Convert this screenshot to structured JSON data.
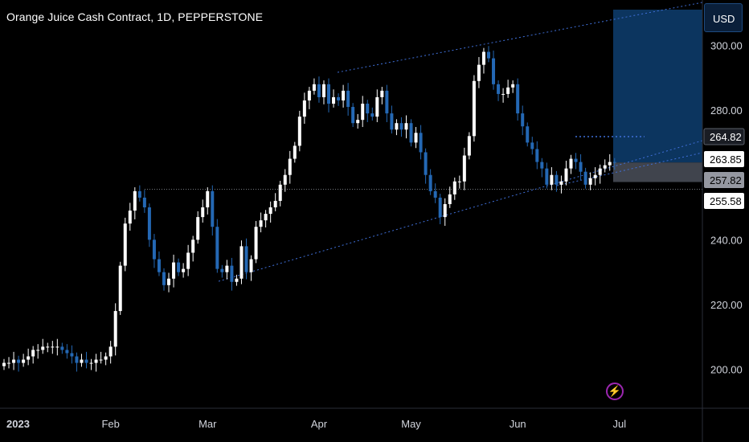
{
  "title": "Orange Juice Cash Contract, 1D, PEPPERSTONE",
  "currency": "USD",
  "icon": "lightning-icon",
  "colors": {
    "up": "#ffffff",
    "down": "#2468b4",
    "channel": "#3f6fd8",
    "target_box": "#0c355f",
    "stop_box": "#40444d",
    "label_bg": "#ffffff"
  },
  "chart_data": {
    "type": "candlestick",
    "title": "Orange Juice Cash Contract, 1D, PEPPERSTONE",
    "ylim": [
      188,
      314
    ],
    "y_ticks": [
      300,
      280,
      240,
      220,
      200
    ],
    "x_ticks": [
      {
        "label": "2023",
        "bar": 0
      },
      {
        "label": "Feb",
        "bar": 22
      },
      {
        "label": "Mar",
        "bar": 42
      },
      {
        "label": "Apr",
        "bar": 65
      },
      {
        "label": "May",
        "bar": 84
      },
      {
        "label": "Jun",
        "bar": 106
      },
      {
        "label": "Jul",
        "bar": 127
      }
    ],
    "price_labels": [
      {
        "text": "264.82",
        "value": 264.82,
        "style": "dark"
      },
      {
        "text": "263.85",
        "value": 263.85,
        "style": "white"
      },
      {
        "text": "257.82",
        "value": 257.82,
        "style": "grey"
      },
      {
        "text": "255.58",
        "value": 255.58,
        "style": "white"
      }
    ],
    "closes": [
      202,
      202,
      203,
      202,
      203,
      204,
      206,
      206,
      207,
      207,
      207,
      207,
      206,
      205,
      204,
      202,
      203,
      202,
      202,
      203,
      203,
      204,
      207,
      218,
      232,
      245,
      249,
      255,
      253,
      250,
      240,
      234,
      230,
      226,
      228,
      233,
      230,
      231,
      236,
      240,
      247,
      250,
      255,
      244,
      231,
      230,
      232,
      227,
      228,
      238,
      230,
      234,
      244,
      246,
      248,
      250,
      252,
      257,
      260,
      265,
      269,
      278,
      283,
      286,
      288,
      284,
      288,
      282,
      284,
      283,
      286,
      281,
      276,
      277,
      282,
      279,
      278,
      284,
      286,
      279,
      274,
      276,
      274,
      276,
      270,
      273,
      267,
      260,
      255,
      253,
      247,
      251,
      254,
      258,
      258,
      266,
      272,
      289,
      294,
      298,
      296,
      288,
      285,
      285,
      287,
      288,
      279,
      275,
      270,
      268,
      264,
      262,
      257,
      260,
      257,
      258,
      262,
      265,
      264,
      261,
      257,
      259,
      260,
      262,
      263,
      264,
      263.85
    ]
  }
}
